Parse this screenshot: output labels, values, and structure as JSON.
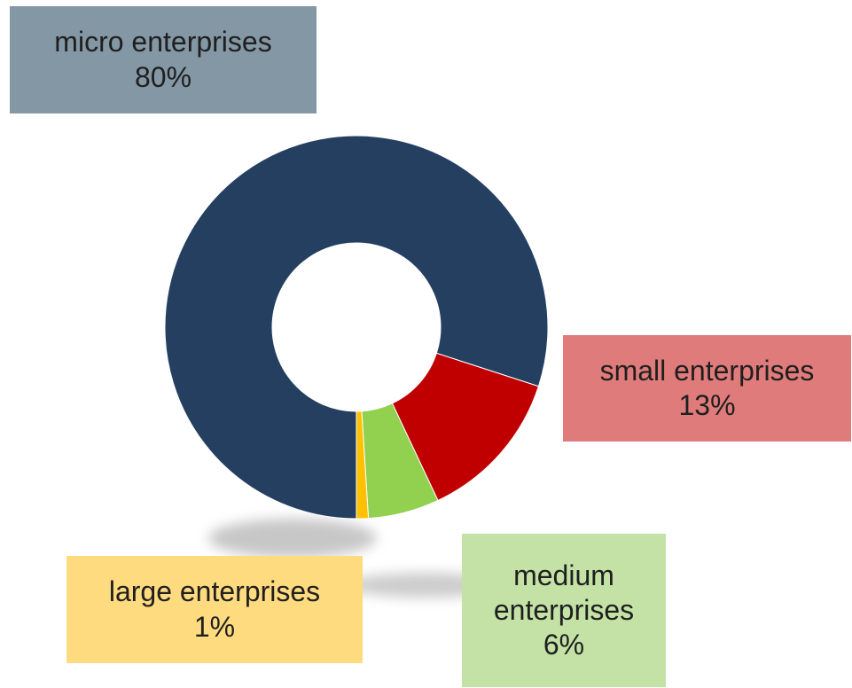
{
  "chart_data": {
    "type": "pie",
    "style": "donut",
    "title": "",
    "slices": [
      {
        "name": "micro enterprises",
        "value": 80,
        "value_label": "80%",
        "color": "#243F60"
      },
      {
        "name": "small enterprises",
        "value": 13,
        "value_label": "13%",
        "color": "#C00000"
      },
      {
        "name": "medium enterprises",
        "value": 6,
        "value_label": "6%",
        "color": "#92D050"
      },
      {
        "name": "large enterprises",
        "value": 1,
        "value_label": "1%",
        "color": "#FFC000"
      }
    ],
    "label_box_colors": {
      "micro": "#8497A5",
      "small": "#E07B7B",
      "medium": "#C4E2A6",
      "large": "#FFDB7F"
    },
    "legend": false
  }
}
